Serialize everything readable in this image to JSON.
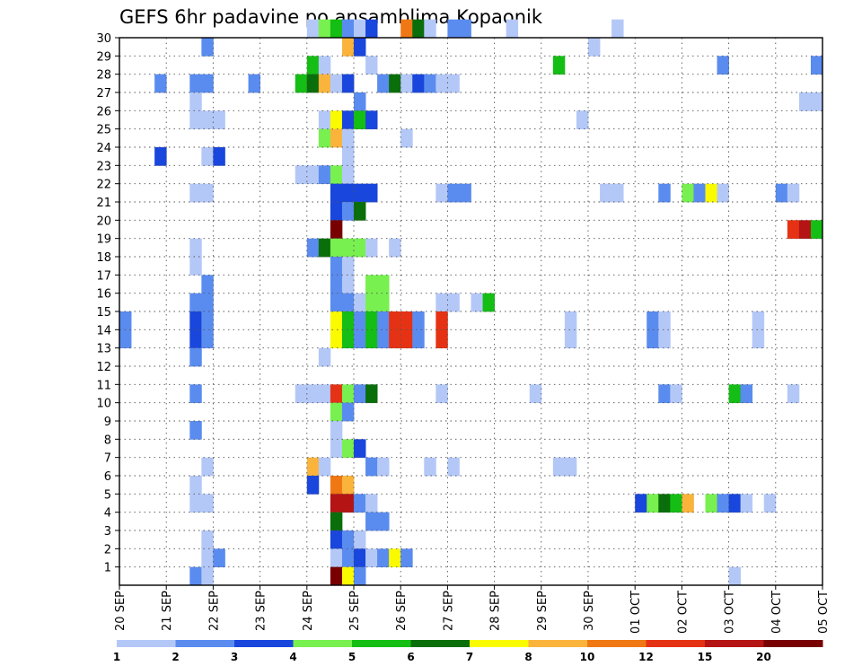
{
  "chart_data": {
    "type": "heatmap",
    "title": "GEFS 6hr padavine po ansamblima Kopaonik",
    "x_tick_labels": [
      "20 SEP",
      "21 SEP",
      "22 SEP",
      "23 SEP",
      "24 SEP",
      "25 SEP",
      "26 SEP",
      "27 SEP",
      "28 SEP",
      "29 SEP",
      "30 SEP",
      "01 OCT",
      "02 OCT",
      "03 OCT",
      "04 OCT",
      "05 OCT"
    ],
    "y_tick_labels": [
      "1",
      "2",
      "3",
      "4",
      "5",
      "6",
      "7",
      "8",
      "9",
      "10",
      "11",
      "12",
      "13",
      "14",
      "15",
      "16",
      "17",
      "18",
      "19",
      "20",
      "21",
      "22",
      "23",
      "24",
      "25",
      "26",
      "27",
      "28",
      "29",
      "30"
    ],
    "time_step_hours": 6,
    "grid": true,
    "colorbar": {
      "labels": [
        "1",
        "2",
        "3",
        "4",
        "5",
        "6",
        "7",
        "8",
        "10",
        "12",
        "15",
        "20"
      ],
      "colors": [
        "#b4c8f8",
        "#5a8cf0",
        "#1946dc",
        "#78f050",
        "#14be14",
        "#0a6e0a",
        "#fafa00",
        "#fab43c",
        "#f07814",
        "#e63214",
        "#b41414",
        "#780000"
      ]
    },
    "cells": [
      {
        "m": 30,
        "c": [
          [
            16,
            1
          ],
          [
            17,
            4
          ],
          [
            18,
            5
          ],
          [
            19,
            2
          ],
          [
            20,
            1
          ],
          [
            21,
            3
          ],
          [
            24,
            9
          ],
          [
            25,
            6
          ],
          [
            26,
            1
          ],
          [
            28,
            2
          ],
          [
            29,
            2
          ],
          [
            33,
            1
          ],
          [
            42,
            1
          ]
        ]
      },
      {
        "m": 29,
        "c": [
          [
            7,
            2
          ],
          [
            19,
            8
          ],
          [
            20,
            3
          ],
          [
            40,
            1
          ]
        ]
      },
      {
        "m": 28,
        "c": [
          [
            16,
            5
          ],
          [
            17,
            1
          ],
          [
            21,
            1
          ],
          [
            37,
            5
          ],
          [
            51,
            2
          ],
          [
            59,
            2
          ]
        ]
      },
      {
        "m": 27,
        "c": [
          [
            3,
            2
          ],
          [
            6,
            2
          ],
          [
            7,
            2
          ],
          [
            11,
            2
          ],
          [
            15,
            5
          ],
          [
            16,
            6
          ],
          [
            17,
            8
          ],
          [
            18,
            1
          ],
          [
            19,
            3
          ],
          [
            22,
            2
          ],
          [
            23,
            6
          ],
          [
            24,
            1
          ],
          [
            25,
            3
          ],
          [
            26,
            2
          ],
          [
            27,
            1
          ],
          [
            28,
            1
          ]
        ]
      },
      {
        "m": 26,
        "c": [
          [
            6,
            1
          ],
          [
            20,
            2
          ],
          [
            58,
            1
          ],
          [
            59,
            1
          ]
        ]
      },
      {
        "m": 25,
        "c": [
          [
            6,
            1
          ],
          [
            7,
            1
          ],
          [
            8,
            1
          ],
          [
            17,
            1
          ],
          [
            18,
            7
          ],
          [
            19,
            3
          ],
          [
            20,
            5
          ],
          [
            21,
            3
          ],
          [
            39,
            1
          ]
        ]
      },
      {
        "m": 24,
        "c": [
          [
            17,
            4
          ],
          [
            18,
            8
          ],
          [
            19,
            1
          ],
          [
            24,
            1
          ]
        ]
      },
      {
        "m": 23,
        "c": [
          [
            3,
            3
          ],
          [
            7,
            1
          ],
          [
            8,
            3
          ],
          [
            19,
            1
          ]
        ]
      },
      {
        "m": 22,
        "c": [
          [
            15,
            1
          ],
          [
            16,
            1
          ],
          [
            17,
            2
          ],
          [
            18,
            4
          ],
          [
            19,
            1
          ]
        ]
      },
      {
        "m": 21,
        "c": [
          [
            6,
            1
          ],
          [
            7,
            1
          ],
          [
            18,
            3
          ],
          [
            19,
            3
          ],
          [
            20,
            3
          ],
          [
            21,
            3
          ],
          [
            27,
            1
          ],
          [
            28,
            2
          ],
          [
            29,
            2
          ],
          [
            41,
            1
          ],
          [
            42,
            1
          ],
          [
            46,
            2
          ],
          [
            48,
            4
          ],
          [
            49,
            2
          ],
          [
            50,
            7
          ],
          [
            51,
            1
          ],
          [
            56,
            2
          ],
          [
            57,
            1
          ]
        ]
      },
      {
        "m": 20,
        "c": [
          [
            18,
            3
          ],
          [
            19,
            2
          ],
          [
            20,
            6
          ]
        ]
      },
      {
        "m": 19,
        "c": [
          [
            18,
            12
          ],
          [
            57,
            10
          ],
          [
            58,
            11
          ],
          [
            59,
            5
          ]
        ]
      },
      {
        "m": 18,
        "c": [
          [
            6,
            1
          ],
          [
            16,
            2
          ],
          [
            17,
            6
          ],
          [
            18,
            4
          ],
          [
            19,
            4
          ],
          [
            20,
            4
          ],
          [
            21,
            1
          ],
          [
            23,
            1
          ]
        ]
      },
      {
        "m": 17,
        "c": [
          [
            6,
            1
          ],
          [
            18,
            2
          ],
          [
            19,
            1
          ]
        ]
      },
      {
        "m": 16,
        "c": [
          [
            7,
            2
          ],
          [
            18,
            2
          ],
          [
            19,
            1
          ],
          [
            21,
            4
          ],
          [
            22,
            4
          ]
        ]
      },
      {
        "m": 15,
        "c": [
          [
            6,
            2
          ],
          [
            7,
            2
          ],
          [
            18,
            2
          ],
          [
            19,
            2
          ],
          [
            20,
            1
          ],
          [
            21,
            4
          ],
          [
            22,
            4
          ],
          [
            27,
            1
          ],
          [
            28,
            1
          ],
          [
            30,
            1
          ],
          [
            31,
            5
          ]
        ]
      },
      {
        "m": 14,
        "c": [
          [
            0,
            2
          ],
          [
            6,
            3
          ],
          [
            7,
            2
          ],
          [
            18,
            7
          ],
          [
            19,
            5
          ],
          [
            20,
            2
          ],
          [
            21,
            5
          ],
          [
            22,
            2
          ],
          [
            23,
            10
          ],
          [
            24,
            10
          ],
          [
            25,
            2
          ],
          [
            27,
            10
          ],
          [
            38,
            1
          ],
          [
            45,
            2
          ],
          [
            46,
            1
          ],
          [
            54,
            1
          ]
        ]
      },
      {
        "m": 13,
        "c": [
          [
            0,
            2
          ],
          [
            6,
            3
          ],
          [
            7,
            2
          ],
          [
            18,
            7
          ],
          [
            19,
            5
          ],
          [
            20,
            2
          ],
          [
            21,
            5
          ],
          [
            22,
            2
          ],
          [
            23,
            10
          ],
          [
            24,
            10
          ],
          [
            25,
            2
          ],
          [
            27,
            10
          ],
          [
            38,
            1
          ],
          [
            45,
            2
          ],
          [
            46,
            1
          ],
          [
            54,
            1
          ]
        ]
      },
      {
        "m": 12,
        "c": [
          [
            6,
            2
          ],
          [
            17,
            1
          ]
        ]
      },
      {
        "m": 10,
        "c": [
          [
            6,
            2
          ],
          [
            15,
            1
          ],
          [
            16,
            1
          ],
          [
            17,
            1
          ],
          [
            18,
            10
          ],
          [
            19,
            4
          ],
          [
            20,
            2
          ],
          [
            21,
            6
          ],
          [
            27,
            1
          ],
          [
            35,
            1
          ],
          [
            46,
            2
          ],
          [
            47,
            1
          ],
          [
            52,
            5
          ],
          [
            53,
            2
          ],
          [
            57,
            1
          ]
        ]
      },
      {
        "m": 9,
        "c": [
          [
            18,
            4
          ],
          [
            19,
            2
          ]
        ]
      },
      {
        "m": 8,
        "c": [
          [
            6,
            2
          ],
          [
            18,
            1
          ]
        ]
      },
      {
        "m": 7,
        "c": [
          [
            18,
            1
          ],
          [
            19,
            4
          ],
          [
            20,
            3
          ]
        ]
      },
      {
        "m": 6,
        "c": [
          [
            7,
            1
          ],
          [
            16,
            8
          ],
          [
            17,
            1
          ],
          [
            21,
            2
          ],
          [
            22,
            1
          ],
          [
            26,
            1
          ],
          [
            28,
            1
          ],
          [
            37,
            1
          ],
          [
            38,
            1
          ]
        ]
      },
      {
        "m": 5,
        "c": [
          [
            6,
            1
          ],
          [
            16,
            3
          ],
          [
            18,
            9
          ],
          [
            19,
            8
          ]
        ]
      },
      {
        "m": 4,
        "c": [
          [
            6,
            1
          ],
          [
            7,
            1
          ],
          [
            18,
            11
          ],
          [
            19,
            11
          ],
          [
            20,
            2
          ],
          [
            21,
            1
          ],
          [
            44,
            3
          ],
          [
            45,
            4
          ],
          [
            46,
            6
          ],
          [
            47,
            5
          ],
          [
            48,
            8
          ],
          [
            50,
            4
          ],
          [
            51,
            2
          ],
          [
            52,
            3
          ],
          [
            53,
            1
          ],
          [
            55,
            1
          ]
        ]
      },
      {
        "m": 3,
        "c": [
          [
            18,
            6
          ],
          [
            21,
            2
          ],
          [
            22,
            2
          ]
        ]
      },
      {
        "m": 2,
        "c": [
          [
            7,
            1
          ],
          [
            18,
            3
          ],
          [
            19,
            2
          ],
          [
            20,
            1
          ]
        ]
      },
      {
        "m": 1,
        "c": [
          [
            7,
            1
          ],
          [
            8,
            2
          ],
          [
            18,
            1
          ],
          [
            19,
            2
          ],
          [
            20,
            3
          ],
          [
            21,
            1
          ],
          [
            22,
            2
          ],
          [
            23,
            7
          ],
          [
            24,
            2
          ]
        ]
      },
      {
        "m": 0,
        "c": [
          [
            6,
            2
          ],
          [
            7,
            1
          ],
          [
            18,
            12
          ],
          [
            19,
            7
          ],
          [
            20,
            2
          ],
          [
            52,
            1
          ]
        ]
      }
    ]
  }
}
